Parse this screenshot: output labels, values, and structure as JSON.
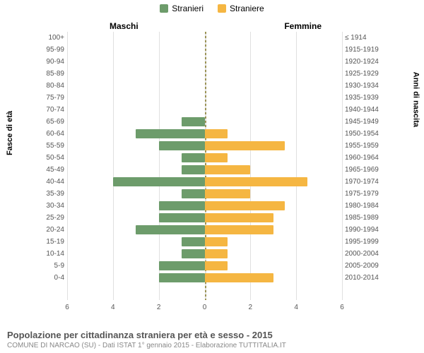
{
  "chart": {
    "type": "population-pyramid",
    "legend": [
      {
        "label": "Stranieri",
        "color": "#6d9c6b"
      },
      {
        "label": "Straniere",
        "color": "#f5b642"
      }
    ],
    "header_left": "Maschi",
    "header_right": "Femmine",
    "y_axis_left_title": "Fasce di età",
    "y_axis_right_title": "Anni di nascita",
    "x_max": 6,
    "x_ticks": [
      6,
      4,
      2,
      0,
      2,
      4,
      6
    ],
    "background_color": "#ffffff",
    "grid_color": "#e0e0e0",
    "center_line_color": "#9c9456",
    "bar_left_color": "#6d9c6b",
    "bar_right_color": "#f5b642",
    "label_fontsize": 10,
    "rows": [
      {
        "age": "100+",
        "birth": "≤ 1914",
        "m": 0,
        "f": 0
      },
      {
        "age": "95-99",
        "birth": "1915-1919",
        "m": 0,
        "f": 0
      },
      {
        "age": "90-94",
        "birth": "1920-1924",
        "m": 0,
        "f": 0
      },
      {
        "age": "85-89",
        "birth": "1925-1929",
        "m": 0,
        "f": 0
      },
      {
        "age": "80-84",
        "birth": "1930-1934",
        "m": 0,
        "f": 0
      },
      {
        "age": "75-79",
        "birth": "1935-1939",
        "m": 0,
        "f": 0
      },
      {
        "age": "70-74",
        "birth": "1940-1944",
        "m": 0,
        "f": 0
      },
      {
        "age": "65-69",
        "birth": "1945-1949",
        "m": 1,
        "f": 0
      },
      {
        "age": "60-64",
        "birth": "1950-1954",
        "m": 3,
        "f": 1
      },
      {
        "age": "55-59",
        "birth": "1955-1959",
        "m": 2,
        "f": 3.5
      },
      {
        "age": "50-54",
        "birth": "1960-1964",
        "m": 1,
        "f": 1
      },
      {
        "age": "45-49",
        "birth": "1965-1969",
        "m": 1,
        "f": 2
      },
      {
        "age": "40-44",
        "birth": "1970-1974",
        "m": 4,
        "f": 4.5
      },
      {
        "age": "35-39",
        "birth": "1975-1979",
        "m": 1,
        "f": 2
      },
      {
        "age": "30-34",
        "birth": "1980-1984",
        "m": 2,
        "f": 3.5
      },
      {
        "age": "25-29",
        "birth": "1985-1989",
        "m": 2,
        "f": 3
      },
      {
        "age": "20-24",
        "birth": "1990-1994",
        "m": 3,
        "f": 3
      },
      {
        "age": "15-19",
        "birth": "1995-1999",
        "m": 1,
        "f": 1
      },
      {
        "age": "10-14",
        "birth": "2000-2004",
        "m": 1,
        "f": 1
      },
      {
        "age": "5-9",
        "birth": "2005-2009",
        "m": 2,
        "f": 1
      },
      {
        "age": "0-4",
        "birth": "2010-2014",
        "m": 2,
        "f": 3
      }
    ]
  },
  "footer": {
    "title": "Popolazione per cittadinanza straniera per età e sesso - 2015",
    "subtitle": "COMUNE DI NARCAO (SU) - Dati ISTAT 1° gennaio 2015 - Elaborazione TUTTITALIA.IT"
  }
}
